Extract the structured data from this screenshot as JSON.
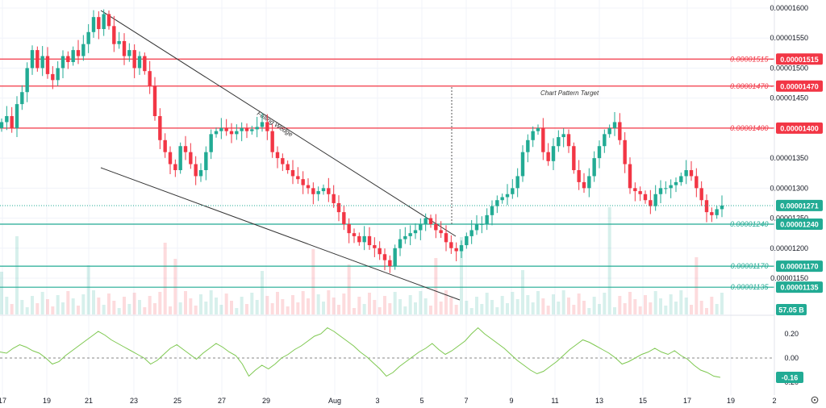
{
  "chart_data": {
    "type": "candlestick",
    "price_axis": {
      "min": 1.095e-05,
      "max": 1.6e-05,
      "ticks": [
        "0.00001600",
        "0.00001550",
        "0.00001500",
        "0.00001450",
        "0.00001350",
        "0.00001300",
        "0.00001250",
        "0.00001200",
        "0.00001150"
      ],
      "hidden_tick_label": "00"
    },
    "x_axis": {
      "tick_labels": [
        "17",
        "19",
        "21",
        "23",
        "25",
        "27",
        "29",
        "Aug",
        "3",
        "5",
        "7",
        "9",
        "11",
        "13",
        "15",
        "17",
        "19",
        "2"
      ]
    },
    "annotations": {
      "falling_wedge": "Falling Wedge",
      "chart_pattern_target": "Chart Pattern Target"
    },
    "horizontal_levels": [
      {
        "value": 1.515e-05,
        "label": "0.00001515",
        "color": "#f23645"
      },
      {
        "value": 1.47e-05,
        "label": "0.00001470",
        "color": "#f23645"
      },
      {
        "value": 1.4e-05,
        "label": "0.00001400",
        "color": "#f23645"
      },
      {
        "value": 1.24e-05,
        "label": "0.00001240",
        "color": "#22ab94"
      },
      {
        "value": 1.17e-05,
        "label": "0.00001170",
        "color": "#22ab94"
      },
      {
        "value": 1.135e-05,
        "label": "0.00001135",
        "color": "#22ab94"
      }
    ],
    "last_price": {
      "value": 1.271e-05,
      "label": "0.00001271",
      "color": "#22ab94"
    },
    "volume_badge": {
      "label": "57.05 B",
      "color": "#22ab94"
    },
    "oscillator": {
      "ticks": [
        {
          "label": "0.20",
          "value": 0.2
        },
        {
          "label": "0.00",
          "value": 0.0
        },
        {
          "label": "-0.20",
          "value": -0.2
        }
      ],
      "current": {
        "value": -0.16,
        "label": "-0.16",
        "color": "#22ab94"
      },
      "zero_line": true
    },
    "grid": true,
    "colors": {
      "up": "#22ab94",
      "down": "#f23645",
      "oscillator_line": "#7ec850"
    },
    "close_path": [
      1.41e-05,
      1.42e-05,
      1.4e-05,
      1.44e-05,
      1.46e-05,
      1.5e-05,
      1.53e-05,
      1.5e-05,
      1.52e-05,
      1.49e-05,
      1.48e-05,
      1.5e-05,
      1.52e-05,
      1.51e-05,
      1.53e-05,
      1.52e-05,
      1.54e-05,
      1.56e-05,
      1.585e-05,
      1.565e-05,
      1.59e-05,
      1.57e-05,
      1.54e-05,
      1.545e-05,
      1.52e-05,
      1.53e-05,
      1.5e-05,
      1.52e-05,
      1.495e-05,
      1.47e-05,
      1.42e-05,
      1.38e-05,
      1.36e-05,
      1.34e-05,
      1.33e-05,
      1.37e-05,
      1.36e-05,
      1.34e-05,
      1.32e-05,
      1.33e-05,
      1.36e-05,
      1.39e-05,
      1.395e-05,
      1.4e-05,
      1.395e-05,
      1.39e-05,
      1.395e-05,
      1.4e-05,
      1.395e-05,
      1.398e-05,
      1.402e-05,
      1.41e-05,
      1.395e-05,
      1.36e-05,
      1.35e-05,
      1.34e-05,
      1.33e-05,
      1.32e-05,
      1.315e-05,
      1.305e-05,
      1.3e-05,
      1.29e-05,
      1.295e-05,
      1.3e-05,
      1.29e-05,
      1.275e-05,
      1.26e-05,
      1.24e-05,
      1.225e-05,
      1.22e-05,
      1.21e-05,
      1.22e-05,
      1.205e-05,
      1.2e-05,
      1.19e-05,
      1.18e-05,
      1.17e-05,
      1.2e-05,
      1.215e-05,
      1.22e-05,
      1.225e-05,
      1.23e-05,
      1.24e-05,
      1.25e-05,
      1.24e-05,
      1.23e-05,
      1.225e-05,
      1.21e-05,
      1.2e-05,
      1.195e-05,
      1.205e-05,
      1.22e-05,
      1.23e-05,
      1.24e-05,
      1.24e-05,
      1.255e-05,
      1.27e-05,
      1.28e-05,
      1.285e-05,
      1.29e-05,
      1.3e-05,
      1.32e-05,
      1.36e-05,
      1.38e-05,
      1.395e-05,
      1.4e-05,
      1.36e-05,
      1.345e-05,
      1.37e-05,
      1.385e-05,
      1.39e-05,
      1.37e-05,
      1.33e-05,
      1.31e-05,
      1.3e-05,
      1.32e-05,
      1.35e-05,
      1.37e-05,
      1.39e-05,
      1.4e-05,
      1.41e-05,
      1.38e-05,
      1.34e-05,
      1.3e-05,
      1.295e-05,
      1.29e-05,
      1.28e-05,
      1.27e-05,
      1.29e-05,
      1.3e-05,
      1.3e-05,
      1.305e-05,
      1.31e-05,
      1.32e-05,
      1.33e-05,
      1.32e-05,
      1.3e-05,
      1.28e-05,
      1.26e-05,
      1.255e-05,
      1.265e-05,
      1.271e-05
    ],
    "oscillator_path": [
      0.05,
      0.04,
      0.08,
      0.11,
      0.09,
      0.06,
      0.04,
      0.0,
      -0.05,
      -0.03,
      0.02,
      0.06,
      0.1,
      0.14,
      0.18,
      0.22,
      0.19,
      0.15,
      0.12,
      0.09,
      0.06,
      0.03,
      0.0,
      -0.05,
      -0.02,
      0.03,
      0.08,
      0.11,
      0.07,
      0.03,
      -0.01,
      0.04,
      0.08,
      0.12,
      0.09,
      0.05,
      0.02,
      -0.05,
      -0.15,
      -0.1,
      -0.06,
      -0.09,
      -0.05,
      0.0,
      0.03,
      0.07,
      0.1,
      0.14,
      0.18,
      0.2,
      0.25,
      0.22,
      0.18,
      0.14,
      0.1,
      0.05,
      0.01,
      -0.04,
      -0.09,
      -0.15,
      -0.12,
      -0.07,
      -0.03,
      0.01,
      0.05,
      0.08,
      0.12,
      0.07,
      0.03,
      0.06,
      0.1,
      0.14,
      0.2,
      0.25,
      0.2,
      0.16,
      0.12,
      0.08,
      0.03,
      -0.02,
      -0.06,
      -0.1,
      -0.13,
      -0.11,
      -0.07,
      -0.03,
      0.02,
      0.07,
      0.11,
      0.15,
      0.13,
      0.1,
      0.07,
      0.04,
      0.0,
      -0.05,
      -0.03,
      0.0,
      0.03,
      0.05,
      0.08,
      0.05,
      0.03,
      0.06,
      0.02,
      -0.01,
      -0.06,
      -0.1,
      -0.12,
      -0.15,
      -0.16
    ]
  }
}
